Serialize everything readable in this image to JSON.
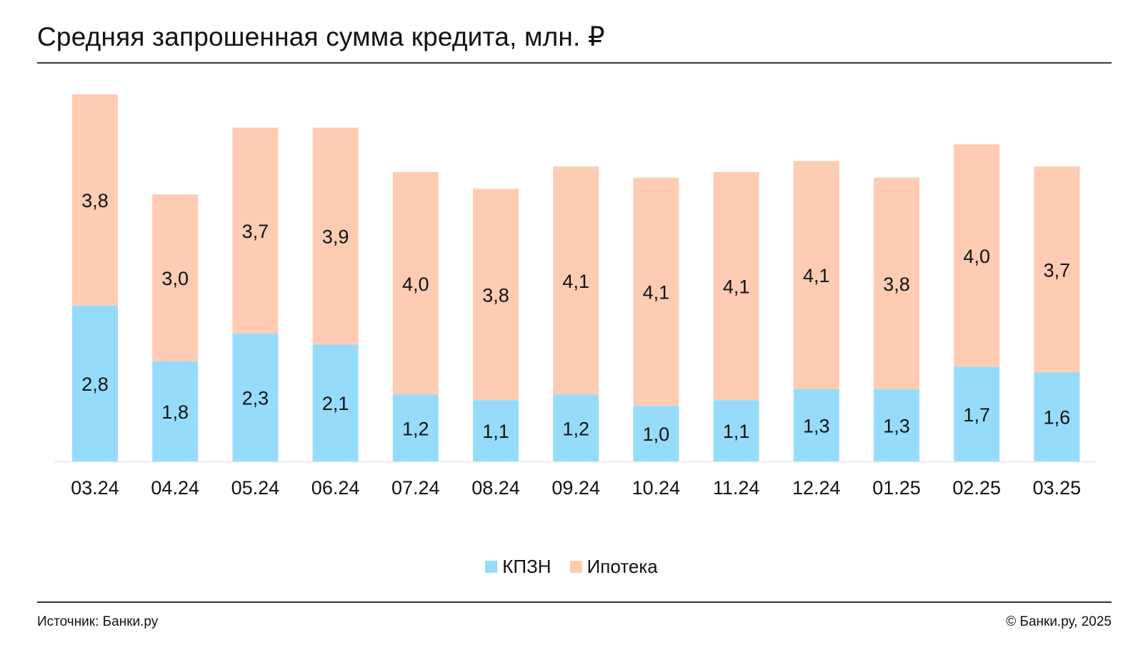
{
  "title": "Средняя запрошенная сумма кредита, млн. ₽",
  "legend": {
    "kpzn": "КПЗН",
    "ipoteka": "Ипотека"
  },
  "footer": {
    "source": "Источник: Банки.ру",
    "copyright": "© Банки.ру, 2025"
  },
  "colors": {
    "kpzn": "#96dcfa",
    "ipoteka": "#fecbb3",
    "axis": "#e6e6e6",
    "text": "#111111"
  },
  "chart_data": {
    "type": "bar",
    "stacked": true,
    "categories": [
      "03.24",
      "04.24",
      "05.24",
      "06.24",
      "07.24",
      "08.24",
      "09.24",
      "10.24",
      "11.24",
      "12.24",
      "01.25",
      "02.25",
      "03.25"
    ],
    "series": [
      {
        "name": "КПЗН",
        "values": [
          2.8,
          1.8,
          2.3,
          2.1,
          1.2,
          1.1,
          1.2,
          1.0,
          1.1,
          1.3,
          1.3,
          1.7,
          1.6
        ],
        "labels": [
          "2,8",
          "1,8",
          "2,3",
          "2,1",
          "1,2",
          "1,1",
          "1,2",
          "1,0",
          "1,1",
          "1,3",
          "1,3",
          "1,7",
          "1,6"
        ]
      },
      {
        "name": "Ипотека",
        "values": [
          3.8,
          3.0,
          3.7,
          3.9,
          4.0,
          3.8,
          4.1,
          4.1,
          4.1,
          4.1,
          3.8,
          4.0,
          3.7
        ],
        "labels": [
          "3,8",
          "3,0",
          "3,7",
          "3,9",
          "4,0",
          "3,8",
          "4,1",
          "4,1",
          "4,1",
          "4,1",
          "3,8",
          "4,0",
          "3,7"
        ]
      }
    ],
    "xlabel": "",
    "ylabel": "",
    "ylim": [
      0,
      6.6
    ],
    "grid": false,
    "legend_position": "bottom-center",
    "data_labels": true
  }
}
